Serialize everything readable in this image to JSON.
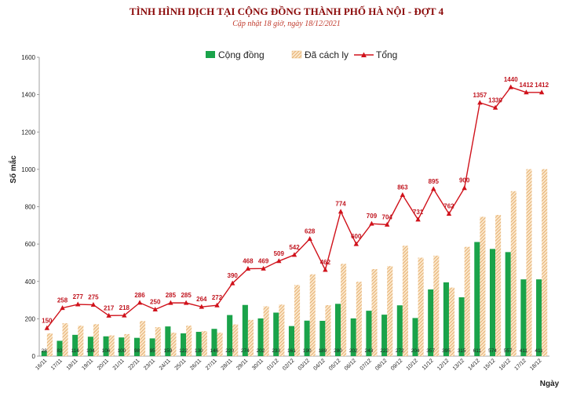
{
  "chart_data": {
    "type": "bar",
    "title": "TÌNH HÌNH DỊCH TẠI CỘNG ĐỒNG THÀNH PHỐ HÀ NỘI - ĐỢT 4",
    "subtitle": "Cập nhật 18 giờ, ngày 18/12/2021",
    "ylabel": "Số mắc",
    "xlabel": "Ngày",
    "ylim": [
      0,
      1600
    ],
    "yticks": [
      0,
      200,
      400,
      600,
      800,
      1000,
      1200,
      1400,
      1600
    ],
    "grid": false,
    "legend_position": "top",
    "categories": [
      "16/11",
      "17/11",
      "18/11",
      "19/11",
      "20/11",
      "21/11",
      "22/11",
      "23/11",
      "24/11",
      "25/11",
      "26/11",
      "27/11",
      "28/11",
      "29/11",
      "30/11",
      "01/12",
      "02/12",
      "03/12",
      "04/12",
      "05/12",
      "06/12",
      "07/12",
      "08/12",
      "09/12",
      "10/12",
      "11/12",
      "12/12",
      "13/12",
      "14/12",
      "15/12",
      "16/12",
      "17/12",
      "18/12"
    ],
    "series": [
      {
        "name": "Cộng đồng",
        "kind": "bar",
        "color": "#1aa34a",
        "values": [
          28,
          82,
          114,
          104,
          106,
          100,
          98,
          95,
          159,
          122,
          130,
          146,
          220,
          274,
          202,
          233,
          161,
          190,
          189,
          280,
          202,
          243,
          222,
          272,
          204,
          357,
          395,
          315,
          611,
          574,
          557,
          411,
          411
        ]
      },
      {
        "name": "Đã cách ly",
        "kind": "bar",
        "color": "#e8b77a",
        "values": [
          122,
          176,
          163,
          171,
          111,
          118,
          188,
          155,
          126,
          163,
          134,
          126,
          170,
          194,
          267,
          276,
          381,
          438,
          273,
          494,
          398,
          466,
          482,
          591,
          527,
          538,
          367,
          585,
          746,
          756,
          883,
          1001,
          1001
        ]
      },
      {
        "name": "Tổng",
        "kind": "line",
        "color": "#d0121b",
        "values": [
          150,
          258,
          277,
          275,
          217,
          218,
          286,
          250,
          285,
          285,
          264,
          272,
          390,
          468,
          469,
          509,
          542,
          628,
          462,
          774,
          600,
          709,
          704,
          863,
          731,
          895,
          762,
          900,
          1357,
          1330,
          1440,
          1412,
          1412
        ]
      }
    ]
  }
}
